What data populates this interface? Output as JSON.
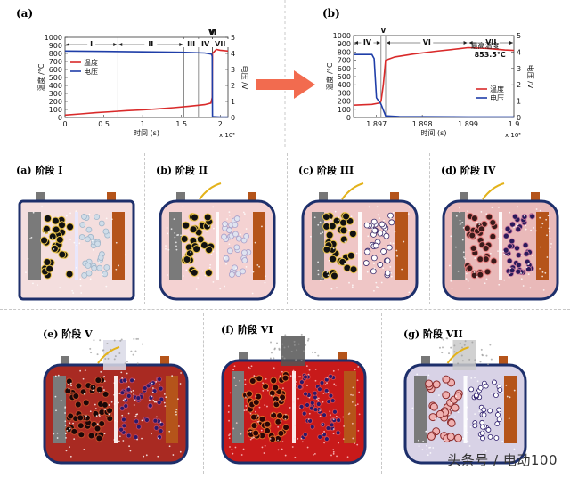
{
  "chart_data": [
    {
      "type": "line",
      "panel_label": "(a)",
      "xlabel": "时间 (s)",
      "xscale_label": "x 10⁵",
      "ylabel_left": "温度 /°C",
      "ylabel_right": "电压 /V",
      "xlim": [
        0,
        2.1
      ],
      "ylim_left": [
        0,
        1000
      ],
      "ylim_right": [
        0,
        5
      ],
      "xticks": [
        "0",
        "0.5",
        "1",
        "1.5",
        "2"
      ],
      "yticks_left": [
        "0",
        "100",
        "200",
        "300",
        "400",
        "500",
        "600",
        "700",
        "800",
        "900",
        "1000"
      ],
      "yticks_right": [
        "0",
        "1",
        "2",
        "3",
        "4",
        "5"
      ],
      "stages": [
        "I",
        "II",
        "III",
        "IV",
        "V",
        "VI",
        "VII"
      ],
      "stage_boundaries": [
        0.68,
        1.53,
        1.72,
        1.897,
        1.8975,
        1.899
      ],
      "legend": [
        "温度",
        "电压"
      ],
      "series": [
        {
          "name": "温度",
          "axis": "left",
          "color": "#d92a2a",
          "x": [
            0,
            0.2,
            0.4,
            0.6,
            0.8,
            1.0,
            1.2,
            1.4,
            1.6,
            1.8,
            1.88,
            1.897,
            1.9,
            1.95,
            2.0,
            2.1
          ],
          "y": [
            30,
            45,
            60,
            72,
            85,
            95,
            108,
            122,
            140,
            160,
            180,
            250,
            800,
            850,
            840,
            830
          ]
        },
        {
          "name": "电压",
          "axis": "right",
          "color": "#1f3ea8",
          "x": [
            0,
            0.5,
            1.0,
            1.5,
            1.8,
            1.89,
            1.897,
            1.9,
            2.0,
            2.1
          ],
          "y": [
            4.15,
            4.13,
            4.1,
            4.07,
            4.03,
            3.95,
            3.8,
            0.05,
            0.03,
            0.03
          ]
        }
      ]
    },
    {
      "type": "line",
      "panel_label": "(b)",
      "xlabel": "时间 (s)",
      "xscale_label": "x 10⁵",
      "ylabel_left": "温度 /°C",
      "ylabel_right": "电压 /V",
      "xlim": [
        1.8965,
        1.9
      ],
      "ylim_left": [
        0,
        1000
      ],
      "ylim_right": [
        0,
        5
      ],
      "xticks": [
        "1.897",
        "1.898",
        "1.899",
        "1.9"
      ],
      "yticks_left": [
        "0",
        "100",
        "200",
        "300",
        "400",
        "500",
        "600",
        "700",
        "800",
        "900",
        "1000"
      ],
      "yticks_right": [
        "0",
        "1",
        "2",
        "3",
        "4",
        "5"
      ],
      "stages": [
        "IV",
        "V",
        "VI",
        "VII"
      ],
      "stage_boundaries": [
        1.8971,
        1.8972,
        1.899
      ],
      "annotation": {
        "label": "最高温度",
        "value": "853.5°C"
      },
      "legend": [
        "温度",
        "电压"
      ],
      "series": [
        {
          "name": "温度",
          "axis": "left",
          "color": "#d92a2a",
          "x": [
            1.8965,
            1.8969,
            1.89705,
            1.8971,
            1.89715,
            1.8972,
            1.8974,
            1.8978,
            1.8983,
            1.8988,
            1.899,
            1.8994,
            1.8998,
            1.9
          ],
          "y": [
            150,
            160,
            175,
            200,
            400,
            700,
            740,
            775,
            810,
            840,
            853.5,
            845,
            825,
            820
          ]
        },
        {
          "name": "电压",
          "axis": "right",
          "color": "#1f3ea8",
          "x": [
            1.8965,
            1.8969,
            1.89695,
            1.897,
            1.8971,
            1.8972,
            1.8975,
            1.899,
            1.9
          ],
          "y": [
            3.85,
            3.85,
            3.6,
            1.2,
            0.8,
            0.1,
            0.05,
            0.03,
            0.03
          ]
        }
      ]
    }
  ],
  "panels": [
    {
      "label": "(a) 阶段 I"
    },
    {
      "label": "(b) 阶段 II"
    },
    {
      "label": "(c) 阶段 III"
    },
    {
      "label": "(d) 阶段 IV"
    },
    {
      "label": "(e) 阶段 V"
    },
    {
      "label": "(f) 阶段 VI"
    },
    {
      "label": "(g) 阶段 VII"
    }
  ],
  "watermark": "头条号 / 电动100",
  "colors": {
    "temperature": "#d92a2a",
    "voltage": "#1f3ea8",
    "arrow": "#f26b4f",
    "cell_border": "#1d2f6b",
    "electrode_gray": "#7a7a7a",
    "electrode_copper": "#b5541a",
    "electrolyte_pink": "#f2c4c4",
    "electrolyte_red": "#c92222",
    "electrolyte_lilac": "#d8d2e6"
  }
}
